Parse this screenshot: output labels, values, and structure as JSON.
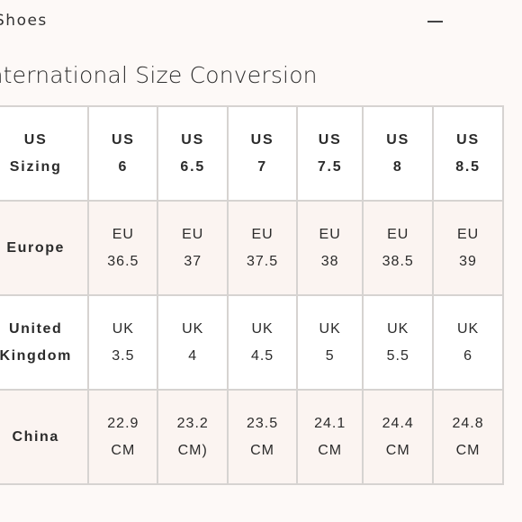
{
  "accordion": {
    "title": "Shoes",
    "toggle_icon": "minus-icon"
  },
  "section_title": "International Size Conversion",
  "table": {
    "rows": [
      {
        "label_lines": [
          "US",
          "Sizing"
        ],
        "cells": [
          [
            "US",
            "6"
          ],
          [
            "US",
            "6.5"
          ],
          [
            "US",
            "7"
          ],
          [
            "US",
            "7.5"
          ],
          [
            "US",
            "8"
          ],
          [
            "US",
            "8.5"
          ]
        ]
      },
      {
        "label_lines": [
          "Europe"
        ],
        "cells": [
          [
            "EU",
            "36.5"
          ],
          [
            "EU",
            "37"
          ],
          [
            "EU",
            "37.5"
          ],
          [
            "EU",
            "38"
          ],
          [
            "EU",
            "38.5"
          ],
          [
            "EU",
            "39"
          ]
        ]
      },
      {
        "label_lines": [
          "United",
          "Kingdom"
        ],
        "cells": [
          [
            "UK",
            "3.5"
          ],
          [
            "UK",
            "4"
          ],
          [
            "UK",
            "4.5"
          ],
          [
            "UK",
            "5"
          ],
          [
            "UK",
            "5.5"
          ],
          [
            "UK",
            "6"
          ]
        ]
      },
      {
        "label_lines": [
          "China"
        ],
        "cells": [
          [
            "22.9",
            "CM"
          ],
          [
            "23.2",
            "CM)"
          ],
          [
            "23.5",
            "CM"
          ],
          [
            "24.1",
            "CM"
          ],
          [
            "24.4",
            "CM"
          ],
          [
            "24.8",
            "CM"
          ]
        ]
      }
    ]
  },
  "colors": {
    "background": "#fdf9f7",
    "border": "#d6d3d1",
    "shaded_row": "#fbf4f1",
    "text": "#2b2b2b"
  }
}
